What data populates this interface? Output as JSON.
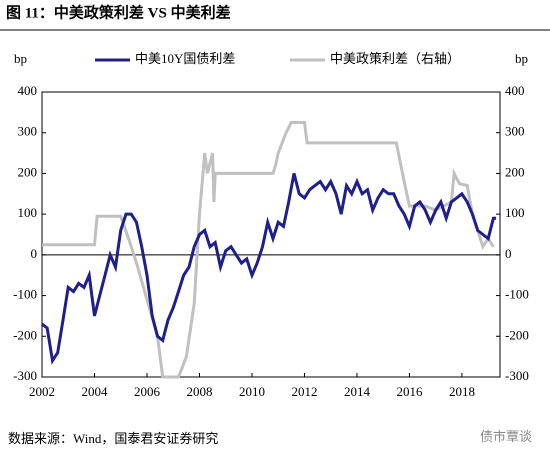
{
  "chart_data": {
    "type": "line",
    "title": "图 11：中美政策利差 VS 中美利差",
    "source": "数据来源：Wind，国泰君安证券研究",
    "watermark": "债市覃谈",
    "ylabel": "bp",
    "y2label": "bp",
    "xlim": [
      2002,
      2019.45
    ],
    "xticks": [
      2002,
      2004,
      2006,
      2008,
      2010,
      2012,
      2014,
      2016,
      2018
    ],
    "ylim": [
      -300,
      400
    ],
    "yticks": [
      -300,
      -200,
      -100,
      0,
      100,
      200,
      300,
      400
    ],
    "y2lim": [
      -300,
      400
    ],
    "y2ticks": [
      -300,
      -200,
      -100,
      0,
      100,
      200,
      300,
      400
    ],
    "series": [
      {
        "name": "中美10Y国债利差",
        "color": "#1f1f8c",
        "axis": "y",
        "x": [
          2002.0,
          2002.2,
          2002.4,
          2002.6,
          2002.8,
          2003.0,
          2003.2,
          2003.4,
          2003.6,
          2003.8,
          2004.0,
          2004.2,
          2004.4,
          2004.6,
          2004.8,
          2005.0,
          2005.2,
          2005.4,
          2005.6,
          2005.8,
          2006.0,
          2006.2,
          2006.4,
          2006.6,
          2006.8,
          2007.0,
          2007.2,
          2007.4,
          2007.6,
          2007.8,
          2008.0,
          2008.2,
          2008.4,
          2008.6,
          2008.8,
          2009.0,
          2009.2,
          2009.4,
          2009.6,
          2009.8,
          2010.0,
          2010.2,
          2010.4,
          2010.6,
          2010.8,
          2011.0,
          2011.2,
          2011.4,
          2011.6,
          2011.8,
          2012.0,
          2012.2,
          2012.4,
          2012.6,
          2012.8,
          2013.0,
          2013.2,
          2013.4,
          2013.6,
          2013.8,
          2014.0,
          2014.2,
          2014.4,
          2014.6,
          2014.8,
          2015.0,
          2015.2,
          2015.4,
          2015.6,
          2015.8,
          2016.0,
          2016.2,
          2016.4,
          2016.6,
          2016.8,
          2017.0,
          2017.2,
          2017.4,
          2017.6,
          2017.8,
          2018.0,
          2018.2,
          2018.4,
          2018.6,
          2018.8,
          2019.0,
          2019.2,
          2019.3
        ],
        "values": [
          -170,
          -180,
          -260,
          -240,
          -160,
          -80,
          -90,
          -70,
          -80,
          -50,
          -150,
          -100,
          -50,
          0,
          -30,
          60,
          100,
          100,
          80,
          20,
          -50,
          -150,
          -200,
          -210,
          -160,
          -130,
          -90,
          -50,
          -30,
          20,
          50,
          60,
          20,
          30,
          -30,
          10,
          20,
          0,
          -20,
          -10,
          -50,
          -20,
          20,
          80,
          40,
          80,
          70,
          130,
          200,
          150,
          140,
          160,
          170,
          180,
          160,
          180,
          150,
          100,
          170,
          150,
          180,
          150,
          160,
          110,
          140,
          160,
          150,
          150,
          120,
          100,
          70,
          120,
          130,
          110,
          80,
          110,
          130,
          90,
          130,
          140,
          150,
          130,
          100,
          60,
          50,
          40,
          90,
          90
        ]
      },
      {
        "name": "中美政策利差（右轴）",
        "color": "#c0c0c0",
        "axis": "y2",
        "x": [
          2002.0,
          2004.0,
          2004.1,
          2005.0,
          2005.3,
          2005.6,
          2006.0,
          2006.4,
          2006.6,
          2007.2,
          2007.5,
          2007.8,
          2008.0,
          2008.2,
          2008.3,
          2008.5,
          2008.55,
          2008.6,
          2010.8,
          2010.9,
          2011.0,
          2011.3,
          2011.5,
          2012.0,
          2012.1,
          2015.5,
          2015.8,
          2016.0,
          2016.6,
          2017.0,
          2017.6,
          2017.7,
          2017.9,
          2018.2,
          2018.4,
          2018.6,
          2018.8,
          2019.0,
          2019.2
        ],
        "values": [
          25,
          25,
          95,
          95,
          40,
          -20,
          -110,
          -200,
          -300,
          -300,
          -250,
          -120,
          100,
          250,
          200,
          250,
          130,
          200,
          200,
          220,
          250,
          300,
          325,
          325,
          275,
          275,
          180,
          120,
          120,
          110,
          130,
          200,
          175,
          170,
          100,
          60,
          20,
          40,
          20
        ]
      }
    ]
  }
}
